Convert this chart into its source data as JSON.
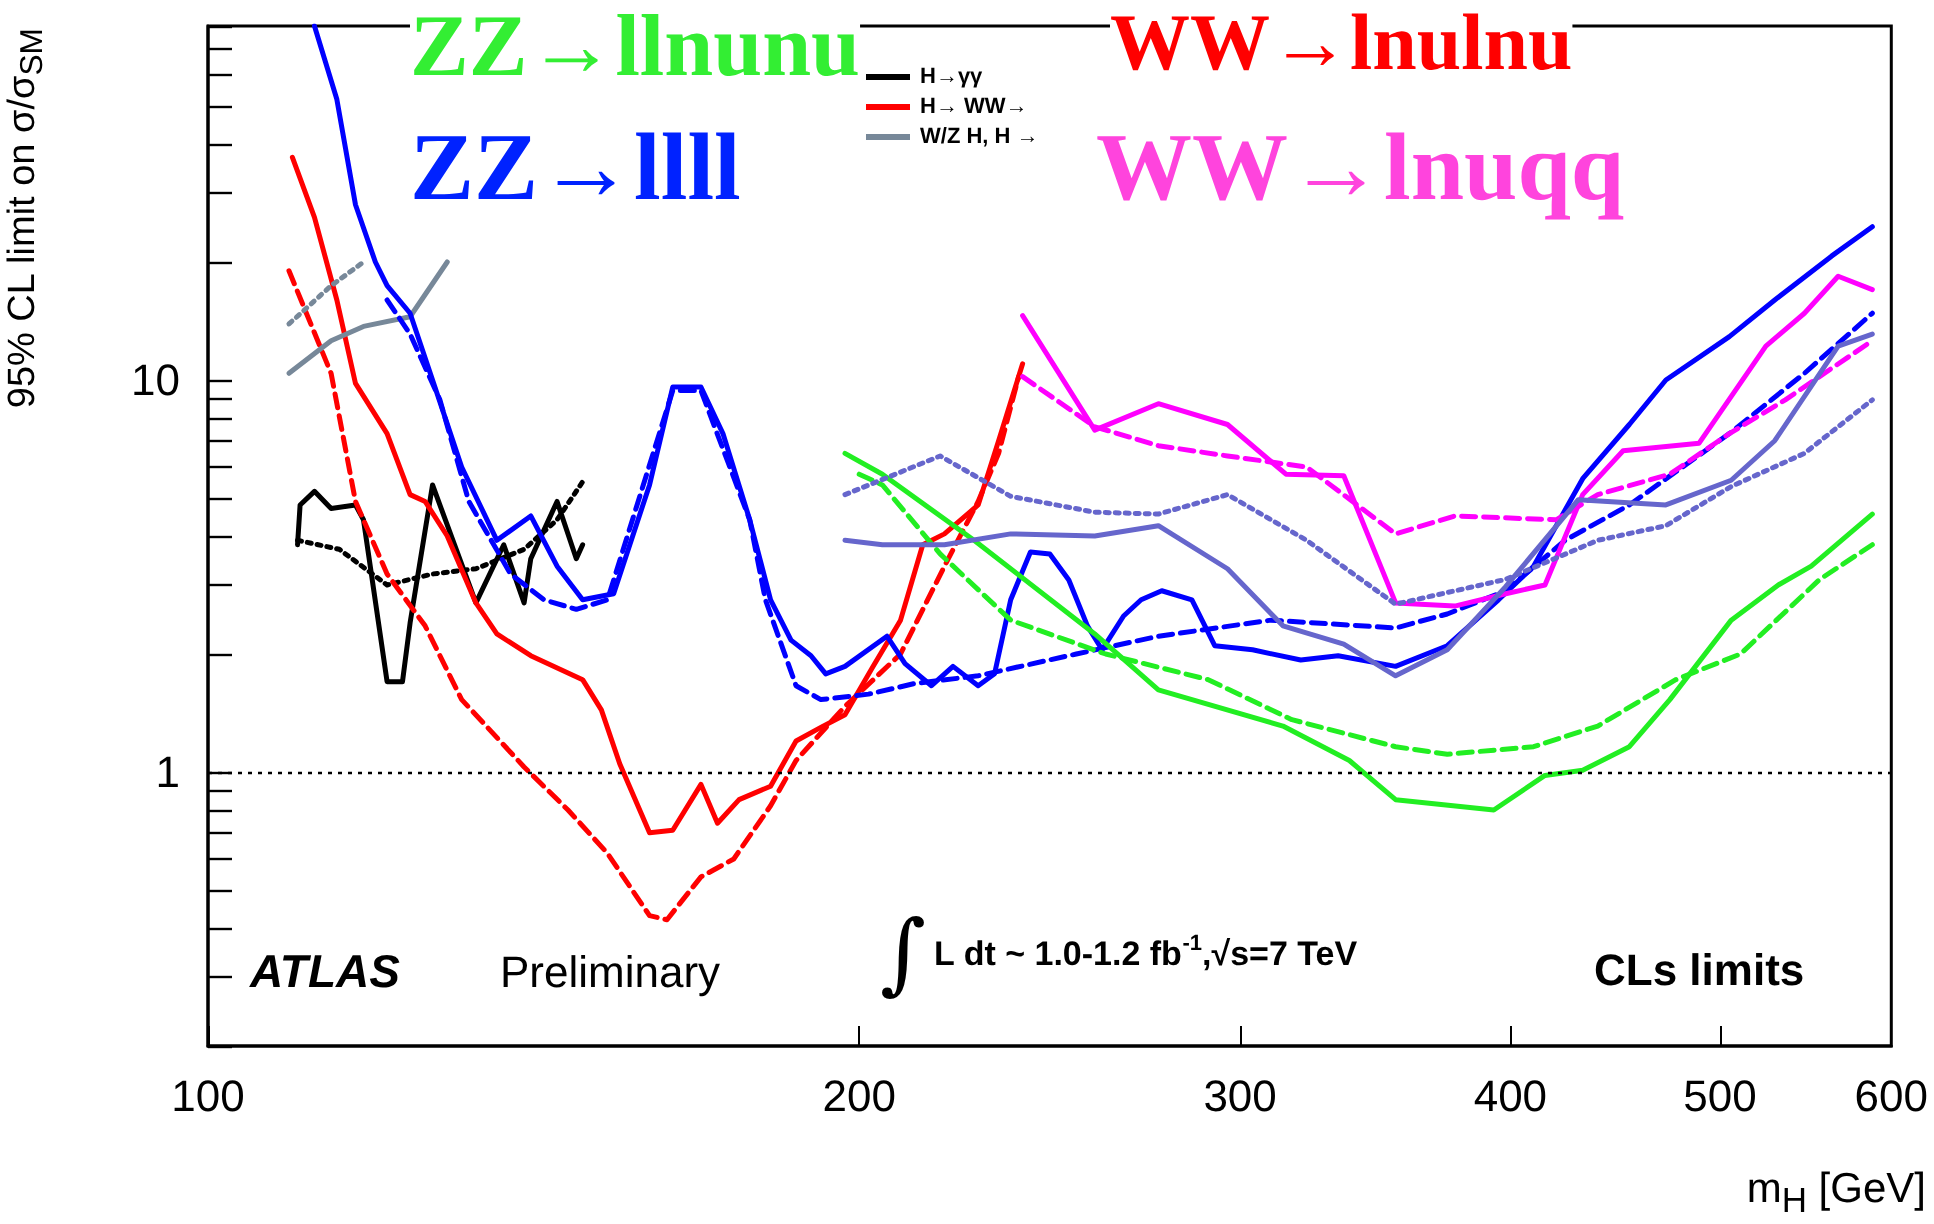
{
  "chart_data": {
    "type": "line",
    "log": "xy",
    "marker": "none",
    "legend": "top",
    "xlabel": "m$_{H}$ [GeV]",
    "ylabel": "95% CL limit on σ/σ$_{SM}$",
    "xlim": [
      100,
      600
    ],
    "xticks": [
      100,
      200,
      300,
      400,
      500,
      600
    ],
    "ylim": [
      0.2,
      80
    ],
    "yticks": [
      {
        "value": 0.2,
        "label": null
      },
      {
        "value": 0.3,
        "label": null
      },
      {
        "value": 0.4,
        "label": null
      },
      {
        "value": 0.5,
        "label": null
      },
      {
        "value": 0.6,
        "label": null
      },
      {
        "value": 0.7,
        "label": null
      },
      {
        "value": 0.8,
        "label": null
      },
      {
        "value": 0.9,
        "label": null
      },
      1,
      {
        "value": 2,
        "label": null
      },
      {
        "value": 3,
        "label": null
      },
      {
        "value": 4,
        "label": null
      },
      {
        "value": 5,
        "label": null
      },
      {
        "value": 6,
        "label": null
      },
      {
        "value": 7,
        "label": null
      },
      {
        "value": 8,
        "label": null
      },
      {
        "value": 9,
        "label": null
      },
      10,
      {
        "value": 20,
        "label": null
      },
      {
        "value": 30,
        "label": null
      },
      {
        "value": 40,
        "label": null
      },
      {
        "value": 50,
        "label": null
      },
      {
        "value": 60,
        "label": null
      },
      {
        "value": 70,
        "label": null
      },
      {
        "value": 80,
        "label": null
      }
    ],
    "ref_lines": [
      {
        "axis": "y",
        "value": 1,
        "color": "#000000",
        "line_style": "dotted"
      }
    ],
    "annotations": [
      "ZZ→llnunu",
      "WW→lnulnu",
      "ZZ→llll",
      "WW→lnuqq",
      "ATLAS",
      "Preliminary",
      "∫L dt ~ 1.0-1.2 fb$^{-1}$,√s=7 TeV",
      "CLs limits"
    ],
    "series": [
      {
        "name": "H→γγ",
        "color": "#000000",
        "line_style": "solid",
        "x": [
          110,
          110.3,
          112,
          114,
          117,
          118,
          121,
          123,
          124,
          127,
          130,
          133,
          137,
          140,
          141,
          145,
          148,
          149
        ],
        "values": [
          3.8,
          4.8,
          5.2,
          4.7,
          4.8,
          4.4,
          1.7,
          1.7,
          2.4,
          5.4,
          3.8,
          2.7,
          3.8,
          2.7,
          3.5,
          4.9,
          3.5,
          3.8
        ]
      },
      {
        "color": "#000000",
        "line_style": "dotted",
        "x": [
          110,
          115,
          121,
          127,
          133,
          140,
          145,
          149
        ],
        "values": [
          3.9,
          3.7,
          3.0,
          3.2,
          3.3,
          3.7,
          4.4,
          5.5
        ]
      },
      {
        "name": "H→ WW→",
        "color": "#ff0000",
        "line_style": "solid",
        "x": [
          109.4,
          112,
          114.7,
          117,
          121,
          124,
          126,
          129,
          133,
          136,
          141,
          149,
          152,
          155,
          160,
          164,
          169,
          172,
          176,
          182,
          187,
          192,
          197,
          203,
          209,
          214,
          219,
          227,
          232,
          238
        ],
        "values": [
          37,
          26,
          16,
          9.8,
          7.3,
          5.1,
          4.9,
          4.0,
          2.7,
          2.25,
          1.98,
          1.72,
          1.44,
          1.05,
          0.7,
          0.71,
          0.93,
          0.74,
          0.85,
          0.92,
          1.2,
          1.3,
          1.4,
          1.86,
          2.44,
          3.8,
          4.05,
          4.8,
          7.0,
          11
        ]
      },
      {
        "color": "#ff0000",
        "line_style": "dashed",
        "x": [
          109,
          114,
          117,
          121,
          126,
          131,
          140,
          146.7,
          153,
          160,
          163,
          169,
          175,
          182,
          187,
          197,
          209,
          219,
          227,
          232,
          237
        ],
        "values": [
          19,
          10.4,
          4.9,
          3.2,
          2.36,
          1.53,
          1.03,
          0.8,
          0.62,
          0.43,
          0.42,
          0.54,
          0.6,
          0.82,
          1.07,
          1.47,
          2.0,
          3.35,
          4.9,
          6.5,
          10.2
        ]
      },
      {
        "name": "W/Z H, H →",
        "color": "#778899",
        "line_style": "solid",
        "x": [
          109,
          114,
          118,
          124,
          129
        ],
        "values": [
          10.4,
          12.6,
          13.7,
          14.5,
          20
        ]
      },
      {
        "color": "#778899",
        "line_style": "dotted",
        "x": [
          109,
          114,
          118
        ],
        "values": [
          13.9,
          17.4,
          20
        ]
      },
      {
        "color": "#0000ff",
        "line_style": "solid",
        "x": [
          112,
          114.7,
          117,
          119.5,
          121,
          124,
          127,
          131,
          136,
          141,
          145,
          149,
          154,
          160,
          164,
          169,
          173,
          178,
          182,
          186,
          190,
          193,
          197,
          206,
          210,
          216,
          221,
          227,
          231,
          235,
          240,
          245,
          250,
          255,
          259,
          265,
          270,
          276,
          285,
          292,
          304,
          320,
          333,
          354,
          374,
          395,
          410,
          432,
          454,
          472,
          505,
          530,
          563,
          588
        ],
        "values": [
          80,
          52,
          28,
          20,
          17.4,
          14.8,
          10,
          6.0,
          3.9,
          4.5,
          3.35,
          2.75,
          2.85,
          5.4,
          9.6,
          9.6,
          7.3,
          4.4,
          2.75,
          2.17,
          1.98,
          1.78,
          1.86,
          2.22,
          1.89,
          1.66,
          1.86,
          1.66,
          1.78,
          2.75,
          3.64,
          3.6,
          3.09,
          2.36,
          2.05,
          2.5,
          2.75,
          2.9,
          2.75,
          2.1,
          2.05,
          1.93,
          1.98,
          1.86,
          2.1,
          2.75,
          3.35,
          5.6,
          7.7,
          10,
          12.9,
          16,
          20.7,
          24.6
        ]
      },
      {
        "color": "#0000ff",
        "line_style": "dashed",
        "x": [
          121,
          124,
          128,
          132,
          138,
          143,
          148,
          153,
          164,
          169,
          178,
          181,
          187,
          192,
          202,
          212,
          227,
          252,
          275,
          310,
          354,
          374,
          398,
          424,
          454,
          505,
          547,
          588
        ],
        "values": [
          16,
          13.1,
          8.9,
          4.9,
          3.2,
          2.75,
          2.6,
          2.75,
          9.4,
          9.4,
          4.4,
          2.75,
          1.66,
          1.53,
          1.58,
          1.68,
          1.76,
          2.0,
          2.22,
          2.44,
          2.33,
          2.53,
          2.9,
          3.9,
          4.8,
          7.3,
          10.4,
          14.8
        ]
      },
      {
        "color": "#22ee22",
        "line_style": "solid",
        "x": [
          197,
          205,
          226,
          257,
          275,
          314,
          337,
          354,
          393,
          415,
          432,
          454,
          474,
          506,
          532,
          551,
          588
        ],
        "values": [
          6.5,
          5.75,
          3.9,
          2.25,
          1.62,
          1.31,
          1.07,
          0.85,
          0.8,
          0.98,
          1.01,
          1.16,
          1.53,
          2.44,
          3.0,
          3.35,
          4.55
        ]
      },
      {
        "color": "#22ee22",
        "line_style": "dashed",
        "x": [
          200,
          205,
          218,
          235,
          260,
          290,
          317,
          354,
          374,
          410,
          439,
          477,
          511,
          556,
          588
        ],
        "values": [
          5.75,
          5.4,
          3.6,
          2.44,
          2.0,
          1.72,
          1.36,
          1.16,
          1.11,
          1.16,
          1.31,
          1.72,
          2.0,
          3.1,
          3.8
        ]
      },
      {
        "color": "#ff00ff",
        "line_style": "solid",
        "x": [
          238,
          257,
          275,
          296,
          315,
          335,
          354,
          377,
          398,
          415,
          432,
          451,
          489,
          525,
          547,
          567,
          588
        ],
        "values": [
          14.6,
          7.45,
          8.7,
          7.7,
          5.75,
          5.7,
          2.7,
          2.65,
          2.85,
          3.0,
          5.1,
          6.6,
          6.9,
          12.2,
          14.8,
          18.4,
          17
        ]
      },
      {
        "color": "#ff00ff",
        "line_style": "dashed",
        "x": [
          238,
          257,
          275,
          296,
          322,
          354,
          377,
          420,
          439,
          474,
          505,
          536,
          588
        ],
        "values": [
          10.2,
          7.6,
          6.8,
          6.4,
          6.0,
          4.05,
          4.5,
          4.4,
          5.1,
          5.75,
          7.3,
          8.9,
          12.6
        ]
      },
      {
        "color": "#6666cc",
        "line_style": "solid",
        "x": [
          197,
          205,
          219,
          235,
          257,
          275,
          296,
          314,
          335,
          354,
          374,
          398,
          430,
          472,
          506,
          530,
          567,
          588
        ],
        "values": [
          3.9,
          3.8,
          3.8,
          4.05,
          4.0,
          4.25,
          3.3,
          2.36,
          2.12,
          1.76,
          2.05,
          2.97,
          4.95,
          4.8,
          5.55,
          7.0,
          12.2,
          13.1
        ]
      },
      {
        "color": "#6666cc",
        "line_style": "dotted",
        "x": [
          197,
          218,
          235,
          257,
          275,
          296,
          322,
          354,
          398,
          439,
          472,
          506,
          547,
          588
        ],
        "values": [
          5.1,
          6.4,
          5.05,
          4.6,
          4.55,
          5.1,
          3.9,
          2.68,
          3.1,
          3.9,
          4.25,
          5.35,
          6.5,
          8.9
        ]
      }
    ]
  }
}
